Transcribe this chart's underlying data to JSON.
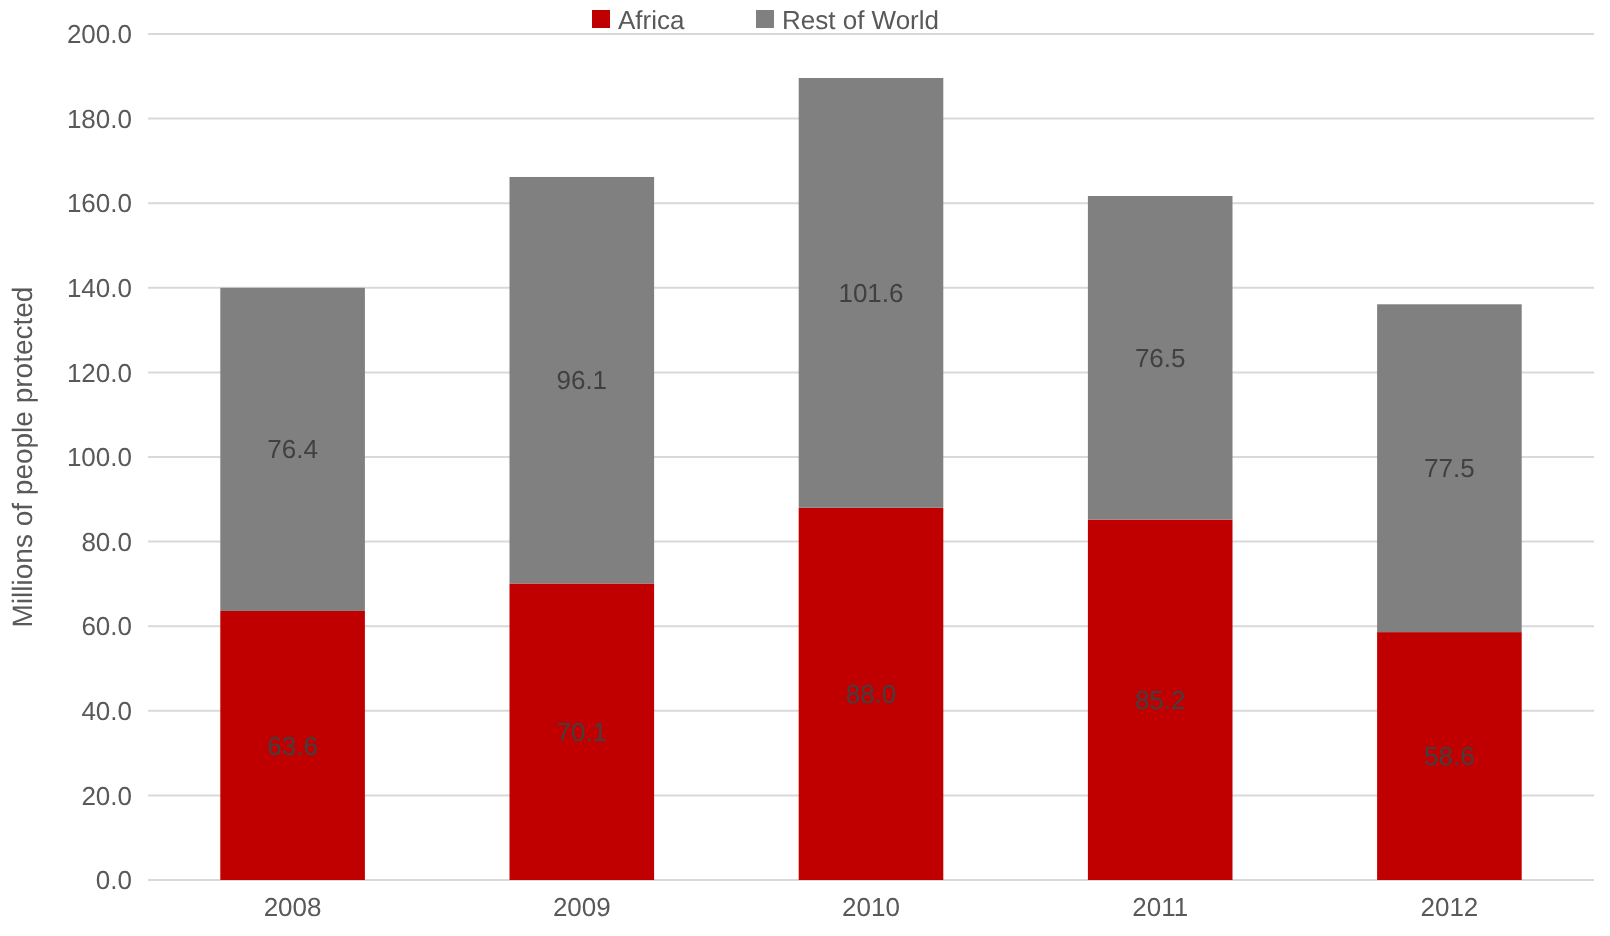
{
  "chart_data": {
    "type": "bar",
    "stacked": true,
    "ylabel": "Millions of people protected",
    "categories": [
      "2008",
      "2009",
      "2010",
      "2011",
      "2012"
    ],
    "series": [
      {
        "name": "Africa",
        "color": "#c00000",
        "values": [
          63.6,
          70.1,
          88.0,
          85.2,
          58.6
        ],
        "value_labels": [
          "63.6",
          "70.1",
          "88.0",
          "85.2",
          "58.6"
        ]
      },
      {
        "name": "Rest of World",
        "color": "#808080",
        "values": [
          76.4,
          96.1,
          101.6,
          76.5,
          77.5
        ],
        "value_labels": [
          "76.4",
          "96.1",
          "101.6",
          "76.5",
          "77.5"
        ]
      }
    ],
    "ylim": [
      0,
      200
    ],
    "yticks": [
      {
        "value": 0,
        "label": "0.0"
      },
      {
        "value": 20,
        "label": "20.0"
      },
      {
        "value": 40,
        "label": "40.0"
      },
      {
        "value": 60,
        "label": "60.0"
      },
      {
        "value": 80,
        "label": "80.0"
      },
      {
        "value": 100,
        "label": "100.0"
      },
      {
        "value": 120,
        "label": "120.0"
      },
      {
        "value": 140,
        "label": "140.0"
      },
      {
        "value": 160,
        "label": "160.0"
      },
      {
        "value": 180,
        "label": "180.0"
      },
      {
        "value": 200,
        "label": "200.0"
      }
    ],
    "grid": "y",
    "legend": "top"
  }
}
